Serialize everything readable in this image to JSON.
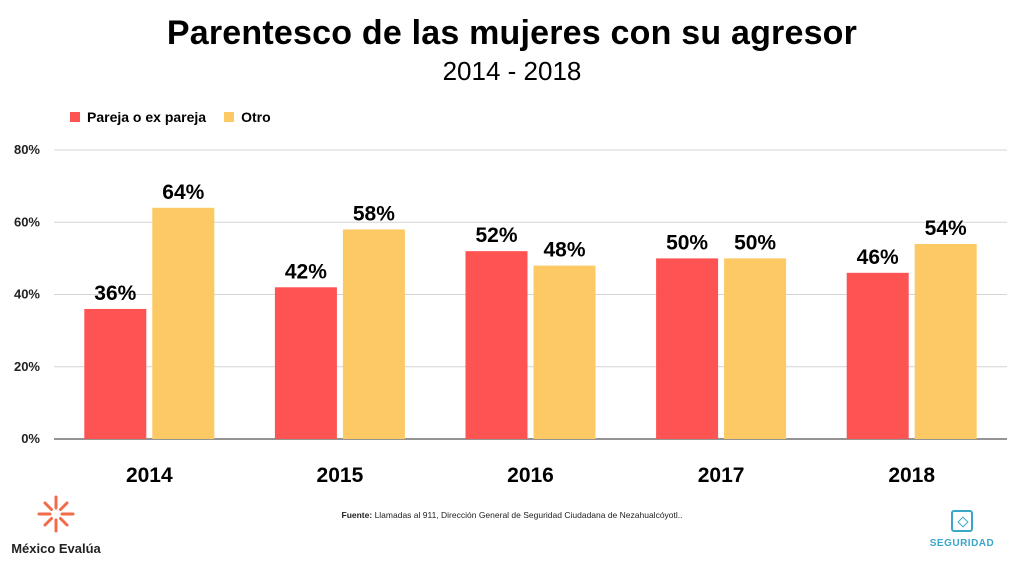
{
  "chart_data": {
    "type": "bar",
    "title": "Parentesco de las mujeres con su agresor",
    "subtitle": "2014 - 2018",
    "categories": [
      "2014",
      "2015",
      "2016",
      "2017",
      "2018"
    ],
    "series": [
      {
        "name": "Pareja o ex pareja",
        "color": "#fd5353",
        "values": [
          36,
          42,
          52,
          50,
          46
        ]
      },
      {
        "name": "Otro",
        "color": "#fdc964",
        "values": [
          64,
          58,
          48,
          50,
          54
        ]
      }
    ],
    "data_labels": [
      [
        "36%",
        "42%",
        "52%",
        "50%",
        "46%"
      ],
      [
        "64%",
        "58%",
        "48%",
        "50%",
        "54%"
      ]
    ],
    "yticks": [
      0,
      20,
      40,
      60,
      80
    ],
    "ytick_labels": [
      "0%",
      "20%",
      "40%",
      "60%",
      "80%"
    ],
    "ylim": [
      0,
      80
    ],
    "grid": true,
    "legend_position": "top-left",
    "xlabel": "",
    "ylabel": ""
  },
  "source": {
    "label": "Fuente:",
    "text": " Llamadas al 911, Dirección General de Seguridad Ciudadana de Nezahualcóyotl.."
  },
  "brand": {
    "name": "México Evalúa",
    "logo_icon": "starburst-logo-icon"
  },
  "section": {
    "label": "SEGURIDAD",
    "icon": "diamond-square-icon"
  }
}
